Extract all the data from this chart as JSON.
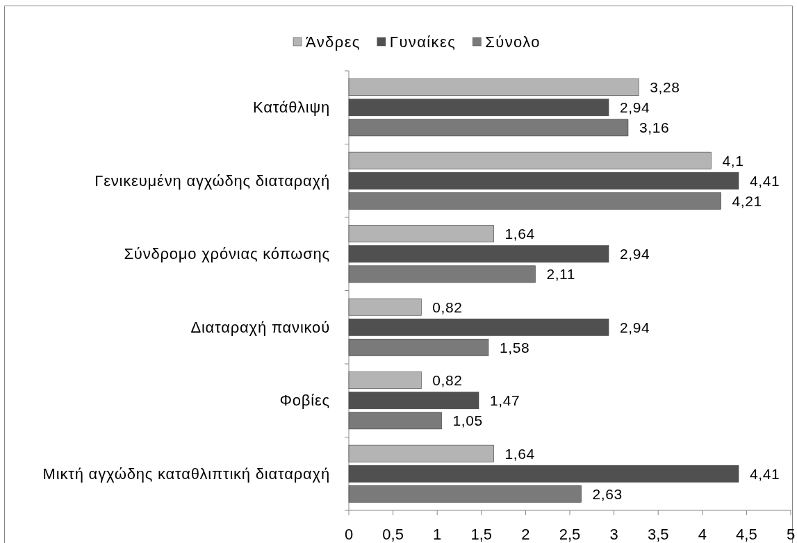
{
  "chart_data": {
    "type": "bar",
    "orientation": "horizontal",
    "categories": [
      "Κατάθλιψη",
      "Γενικευμένη αγχώδης διαταραχή",
      "Σύνδρομο χρόνιας κόπωσης",
      "Διαταραχή πανικού",
      "Φοβίες",
      "Μικτή αγχώδης καταθλιπτική διαταραχή"
    ],
    "series": [
      {
        "name": "Άνδρες",
        "color": "#b4b4b4",
        "values": [
          3.28,
          4.1,
          1.64,
          0.82,
          0.82,
          1.64
        ],
        "value_labels": [
          "3,28",
          "4,1",
          "1,64",
          "0,82",
          "0,82",
          "1,64"
        ]
      },
      {
        "name": "Γυναίκες",
        "color": "#505050",
        "values": [
          2.94,
          4.41,
          2.94,
          2.94,
          1.47,
          4.41
        ],
        "value_labels": [
          "2,94",
          "4,41",
          "2,94",
          "2,94",
          "1,47",
          "4,41"
        ]
      },
      {
        "name": "Σύνολο",
        "color": "#7a7a7a",
        "values": [
          3.16,
          4.21,
          2.11,
          1.58,
          1.05,
          2.63
        ],
        "value_labels": [
          "3,16",
          "4,21",
          "2,11",
          "1,58",
          "1,05",
          "2,63"
        ]
      }
    ],
    "xlim": [
      0,
      5
    ],
    "xticks": [
      0,
      {
        "value": 0.5,
        "label": "0,5"
      },
      1,
      {
        "value": 1.5,
        "label": "1,5"
      },
      2,
      {
        "value": 2.5,
        "label": "2,5"
      },
      3,
      {
        "value": 3.5,
        "label": "3,5"
      },
      4,
      {
        "value": 4.5,
        "label": "4,5"
      },
      5
    ],
    "legend": "top",
    "grid": false
  }
}
